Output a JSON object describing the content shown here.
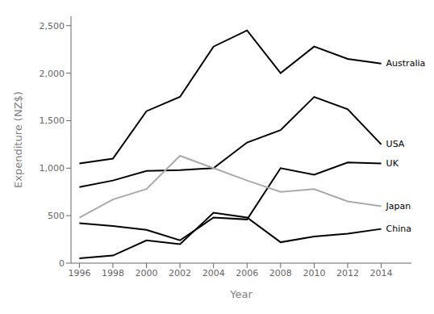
{
  "chart_data": {
    "type": "line",
    "x": [
      1996,
      1998,
      2000,
      2002,
      2004,
      2006,
      2008,
      2010,
      2012,
      2014
    ],
    "series": [
      {
        "name": "Australia",
        "color": "#000000",
        "values": [
          1050,
          1100,
          1600,
          1750,
          2280,
          2450,
          2000,
          2280,
          2150,
          2100
        ]
      },
      {
        "name": "USA",
        "color": "#000000",
        "values": [
          800,
          870,
          970,
          980,
          1000,
          1270,
          1400,
          1750,
          1620,
          1250
        ]
      },
      {
        "name": "UK",
        "color": "#000000",
        "values": [
          420,
          390,
          350,
          240,
          480,
          460,
          1000,
          930,
          1060,
          1050
        ]
      },
      {
        "name": "Japan",
        "color": "#aaaaaa",
        "values": [
          480,
          670,
          780,
          1130,
          1000,
          870,
          750,
          780,
          650,
          600
        ]
      },
      {
        "name": "China",
        "color": "#000000",
        "values": [
          50,
          80,
          240,
          200,
          530,
          480,
          220,
          280,
          310,
          360
        ]
      }
    ],
    "xlabel": "Year",
    "ylabel": "Expenditure (NZ$)",
    "xlim": [
      1995.5,
      2015.8
    ],
    "xticks": [
      1996,
      1998,
      2000,
      2002,
      2004,
      2006,
      2008,
      2010,
      2012,
      2014
    ],
    "ylim": [
      0,
      2600
    ],
    "yticks": [
      0,
      500,
      {
        "value": 1000,
        "label": "1,000"
      },
      {
        "value": 1500,
        "label": "1,500"
      },
      {
        "value": 2000,
        "label": "2,000"
      },
      {
        "value": 2500,
        "label": "2,500"
      }
    ],
    "grid": false
  }
}
